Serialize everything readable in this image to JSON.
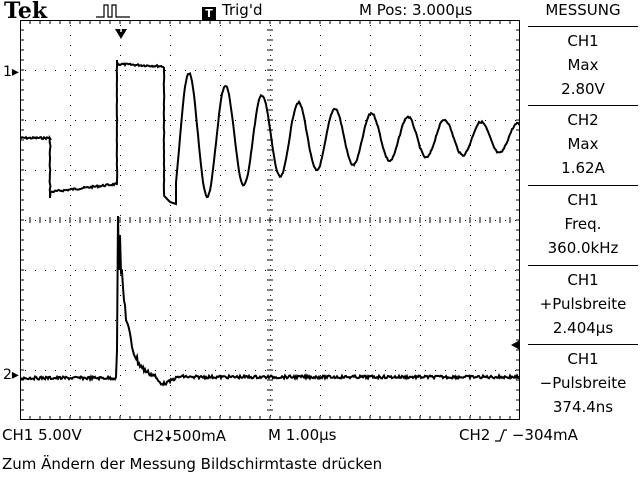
{
  "header": {
    "brand": "Tek",
    "trigger_state": "Trig'd",
    "trigger_badge": "T",
    "position": "M Pos: 3.000µs",
    "menu_title": "MESSUNG"
  },
  "channels": {
    "ch1_marker": "1",
    "ch2_marker": "2"
  },
  "measurements": [
    {
      "source": "CH1",
      "type": "Max",
      "value": "2.80V"
    },
    {
      "source": "CH2",
      "type": "Max",
      "value": "1.62A"
    },
    {
      "source": "CH1",
      "type": "Freq.",
      "value": "360.0kHz"
    },
    {
      "source": "CH1",
      "type": "+Pulsbreite",
      "value": "2.404µs"
    },
    {
      "source": "CH1",
      "type": "−Pulsbreite",
      "value": "374.4ns"
    }
  ],
  "status_bar": {
    "ch1": "CH1  5.00V",
    "ch2": "CH2",
    "ch2_scale": "500mA",
    "timebase": "M 1.00µs",
    "trigger_source": "CH2",
    "trigger_level": "−304mA"
  },
  "message": "Zum Ändern der Messung Bildschirmtaste drücken",
  "colors": {
    "background": "#ffffff",
    "trace": "#000000",
    "grid": "#000000"
  }
}
